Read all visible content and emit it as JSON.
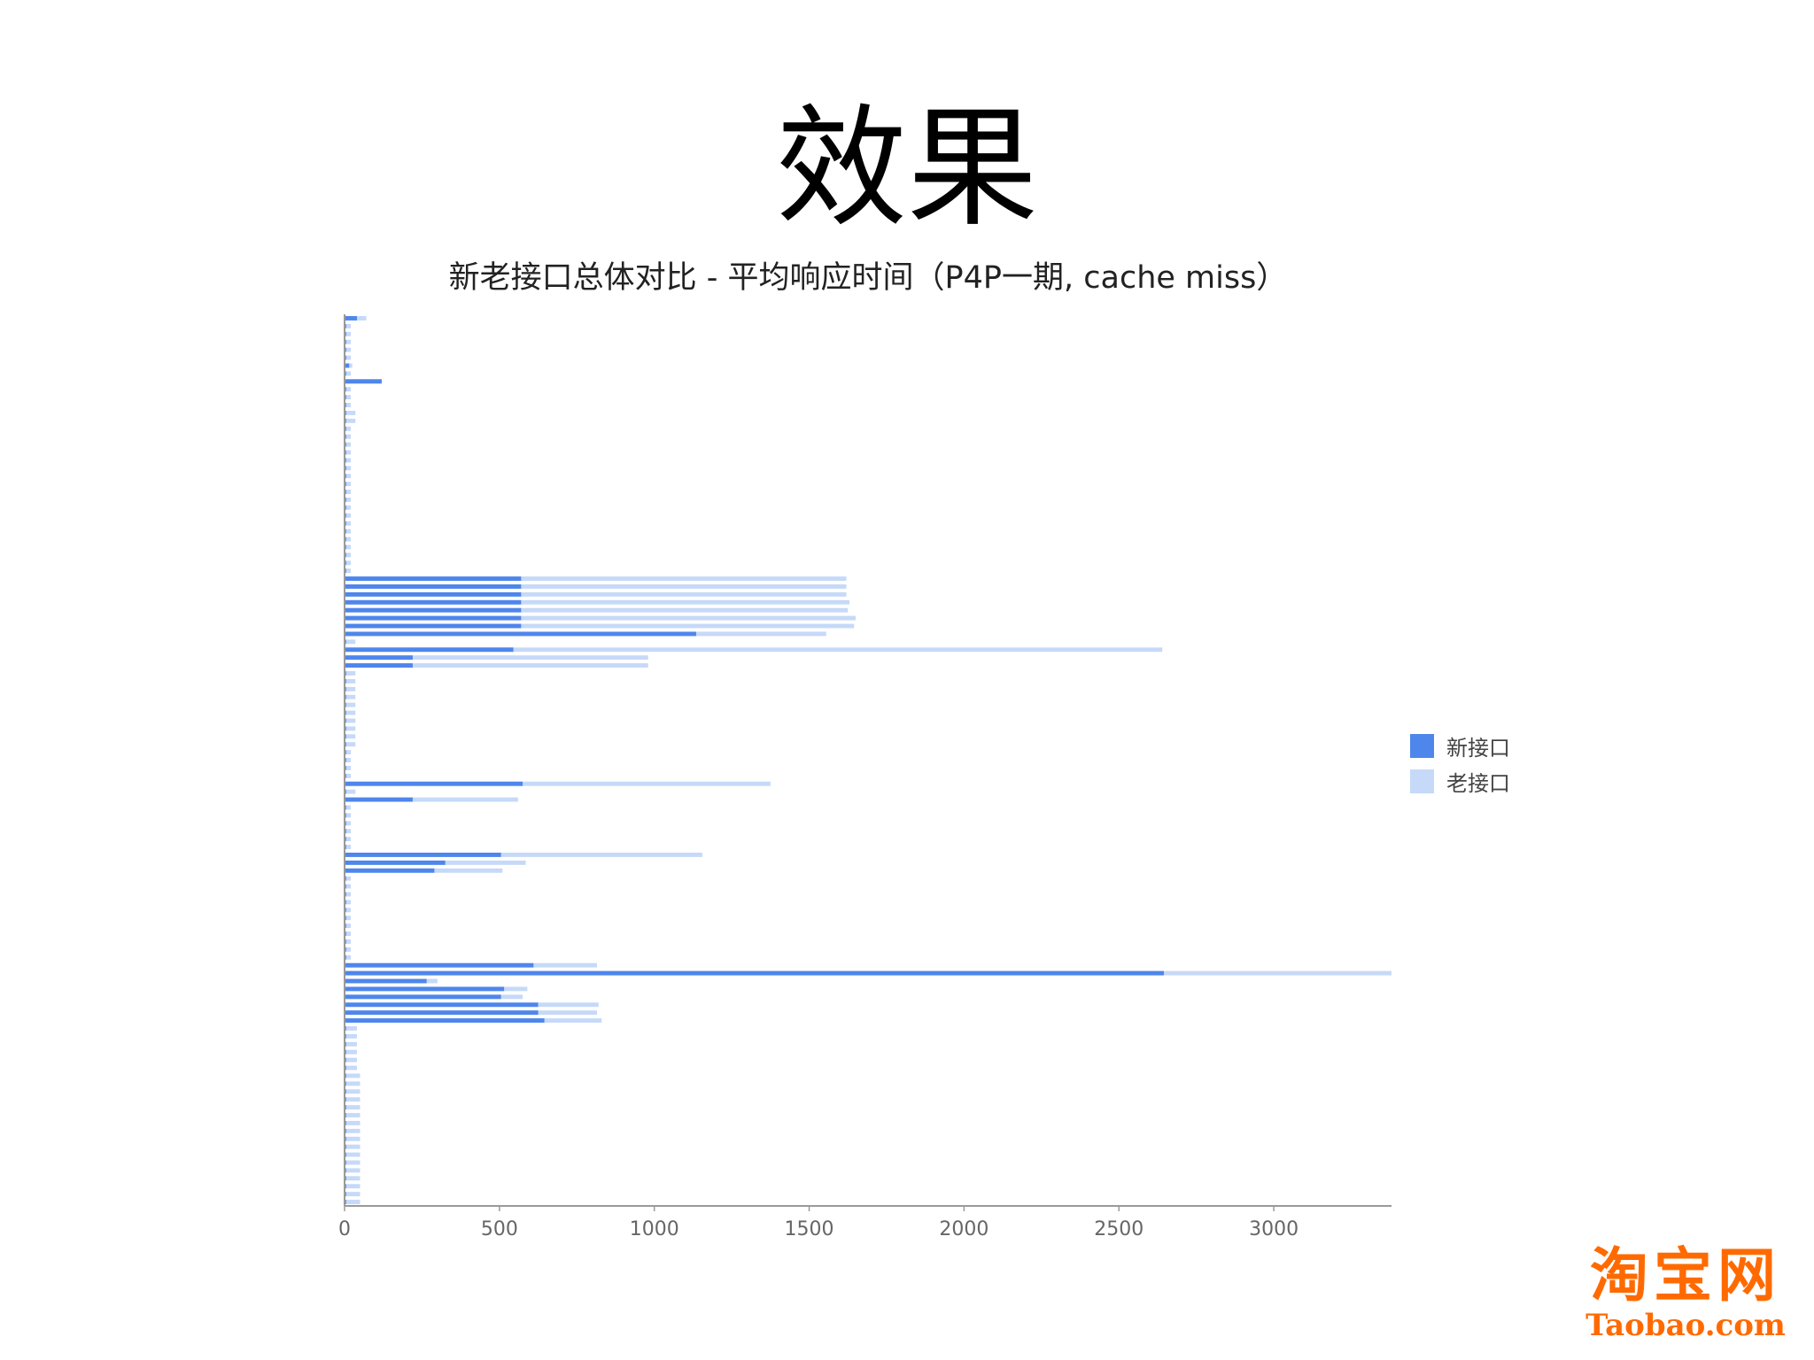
{
  "slide": {
    "title": "效果"
  },
  "chart_data": {
    "type": "bar",
    "orientation": "horizontal",
    "title": "新老接口总体对比 - 平均响应时间（P4P一期, cache miss）",
    "xlabel": "",
    "ylabel": "",
    "xlim": [
      0,
      3380
    ],
    "x_ticks": [
      0,
      500,
      1000,
      1500,
      2000,
      2500,
      3000
    ],
    "grid": false,
    "legend_position": "right",
    "series": [
      {
        "name": "新接口",
        "color": "#4f86ec",
        "values": [
          40,
          5,
          5,
          5,
          5,
          5,
          15,
          5,
          120,
          5,
          5,
          5,
          5,
          5,
          5,
          5,
          5,
          5,
          5,
          5,
          5,
          5,
          5,
          5,
          5,
          5,
          5,
          5,
          5,
          5,
          5,
          5,
          5,
          570,
          570,
          570,
          570,
          570,
          570,
          570,
          1135,
          5,
          545,
          220,
          220,
          5,
          5,
          5,
          5,
          5,
          5,
          5,
          5,
          5,
          5,
          5,
          5,
          5,
          5,
          575,
          5,
          220,
          5,
          5,
          5,
          5,
          5,
          5,
          505,
          325,
          290,
          5,
          5,
          5,
          5,
          5,
          5,
          5,
          5,
          5,
          5,
          5,
          610,
          2645,
          265,
          515,
          505,
          625,
          625,
          645,
          5,
          5,
          5,
          5,
          5,
          5,
          5,
          5,
          5,
          5,
          5,
          5,
          5,
          5,
          5,
          5,
          5,
          5,
          5,
          5,
          5,
          5,
          5
        ]
      },
      {
        "name": "老接口",
        "color": "#c6d9f8",
        "values": [
          70,
          20,
          20,
          20,
          20,
          20,
          25,
          20,
          120,
          20,
          20,
          20,
          35,
          35,
          20,
          20,
          20,
          20,
          20,
          20,
          20,
          20,
          20,
          20,
          20,
          20,
          20,
          20,
          20,
          20,
          20,
          20,
          20,
          1620,
          1620,
          1620,
          1630,
          1625,
          1650,
          1645,
          1555,
          35,
          2640,
          980,
          980,
          35,
          35,
          35,
          35,
          35,
          35,
          35,
          35,
          35,
          35,
          20,
          20,
          20,
          20,
          1375,
          35,
          560,
          20,
          20,
          20,
          20,
          20,
          20,
          1155,
          585,
          510,
          20,
          20,
          20,
          20,
          20,
          20,
          20,
          20,
          20,
          20,
          20,
          815,
          3380,
          300,
          590,
          575,
          820,
          815,
          830,
          40,
          40,
          40,
          40,
          40,
          40,
          50,
          50,
          50,
          50,
          50,
          50,
          50,
          50,
          50,
          50,
          50,
          50,
          50,
          50,
          50,
          50,
          50
        ]
      }
    ]
  },
  "logo": {
    "cn": "淘宝网",
    "en": "Taobao.com"
  }
}
